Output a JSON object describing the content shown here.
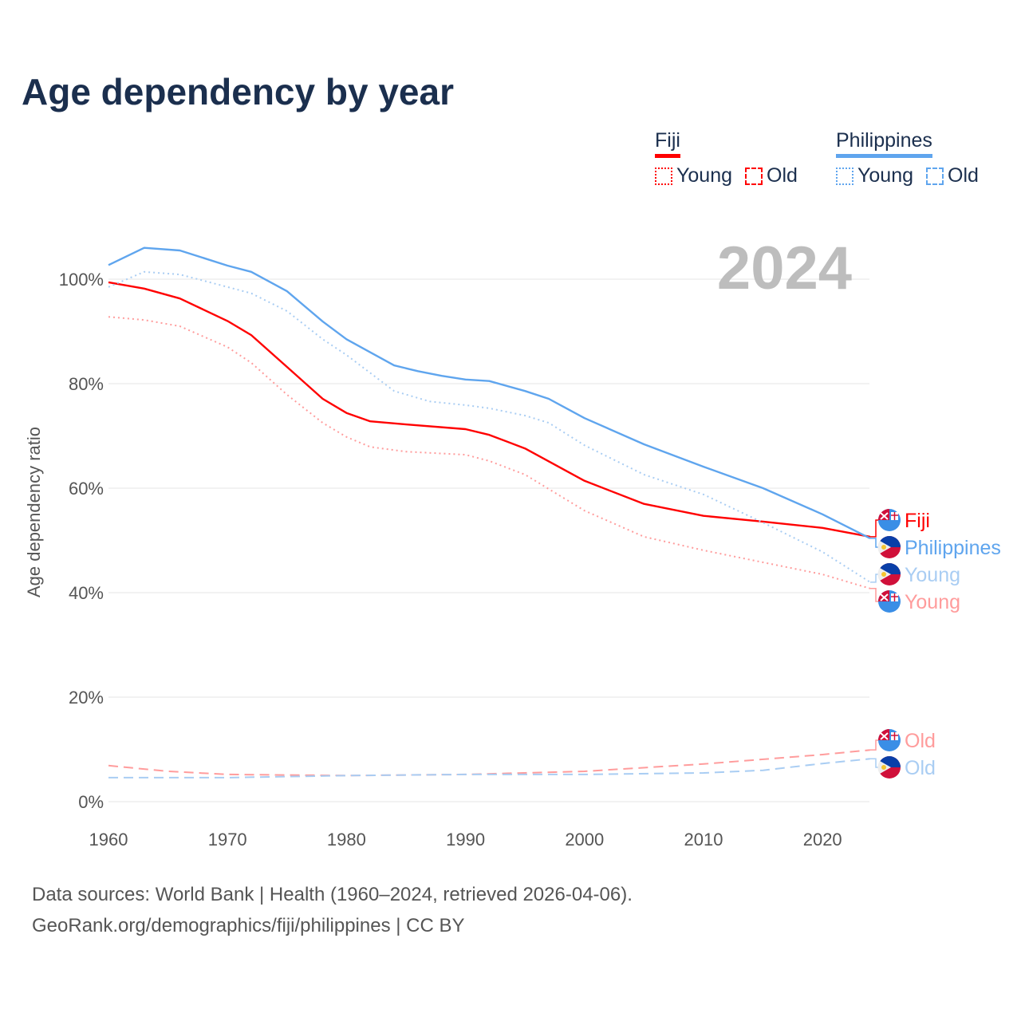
{
  "title": "Age dependency by year",
  "legend": {
    "groups": [
      {
        "name": "Fiji",
        "color": "#ff0000",
        "items": [
          "Young",
          "Old"
        ]
      },
      {
        "name": "Philippines",
        "color": "#5fa5ee",
        "items": [
          "Young",
          "Old"
        ]
      }
    ]
  },
  "year_badge": "2024",
  "source_line1": "Data sources: World Bank | Health (1960–2024, retrieved 2026-04-06).",
  "source_line2": "GeoRank.org/demographics/fiji/philippines | CC BY",
  "chart_data": {
    "type": "line",
    "title": "Age dependency by year",
    "xlabel": "",
    "ylabel": "Age dependency ratio",
    "xlim": [
      1960,
      2024
    ],
    "ylim": [
      0,
      110
    ],
    "x_ticks": [
      "1960",
      "1970",
      "1980",
      "1990",
      "2000",
      "2010",
      "2020"
    ],
    "y_ticks": [
      "0%",
      "20%",
      "40%",
      "60%",
      "80%",
      "100%"
    ],
    "grid": true,
    "series": [
      {
        "name": "Fiji",
        "label": "Fiji",
        "country": "fiji",
        "style": "solid",
        "color": "#ff0000",
        "x": [
          1960,
          1963,
          1966,
          1970,
          1972,
          1975,
          1978,
          1980,
          1982,
          1985,
          1990,
          1992,
          1995,
          2000,
          2005,
          2010,
          2015,
          2020,
          2024
        ],
        "values": [
          99.4,
          98.2,
          96.3,
          92,
          89.3,
          83.2,
          77.1,
          74.4,
          72.8,
          72.2,
          71.3,
          70.2,
          67.6,
          61.4,
          57,
          54.7,
          53.6,
          52.4,
          50.7
        ]
      },
      {
        "name": "Philippines",
        "label": "Philippines",
        "country": "philippines",
        "style": "solid",
        "color": "#5fa5ee",
        "x": [
          1960,
          1963,
          1966,
          1970,
          1972,
          1975,
          1978,
          1980,
          1982,
          1984,
          1986,
          1988,
          1990,
          1992,
          1995,
          1997,
          2000,
          2005,
          2010,
          2015,
          2020,
          2024
        ],
        "values": [
          102.7,
          106,
          105.5,
          102.6,
          101.4,
          97.7,
          91.9,
          88.5,
          86,
          83.5,
          82.4,
          81.5,
          80.8,
          80.5,
          78.6,
          77.1,
          73.4,
          68.4,
          64.1,
          60,
          55,
          50.4
        ]
      },
      {
        "name": "Philippines Young",
        "label": "Young",
        "country": "philippines",
        "style": "dotted",
        "color": "#a9cdf3",
        "x": [
          1960,
          1963,
          1966,
          1970,
          1972,
          1975,
          1978,
          1980,
          1984,
          1987,
          1990,
          1992,
          1995,
          1997,
          2000,
          2005,
          2010,
          2015,
          2020,
          2024
        ],
        "values": [
          98.5,
          101.4,
          100.9,
          98.5,
          97.3,
          93.9,
          88.5,
          85.5,
          78.6,
          76.6,
          75.9,
          75.3,
          73.9,
          72.5,
          68.2,
          62.6,
          58.8,
          53.4,
          47.8,
          42
        ]
      },
      {
        "name": "Fiji Young",
        "label": "Young",
        "country": "fiji",
        "style": "dotted",
        "color": "#ff9c9c",
        "x": [
          1960,
          1963,
          1966,
          1970,
          1972,
          1975,
          1978,
          1980,
          1982,
          1985,
          1990,
          1992,
          1995,
          2000,
          2005,
          2010,
          2015,
          2020,
          2024
        ],
        "values": [
          92.8,
          92.2,
          91,
          87,
          84,
          77.9,
          72.5,
          69.8,
          67.9,
          67,
          66.4,
          65.2,
          62.6,
          55.7,
          50.7,
          48.1,
          45.8,
          43.5,
          40.8
        ]
      },
      {
        "name": "Fiji Old",
        "label": "Old",
        "country": "fiji",
        "style": "dashed",
        "color": "#ff9c9c",
        "x": [
          1960,
          1965,
          1970,
          1980,
          1990,
          2000,
          2010,
          2020,
          2024
        ],
        "values": [
          6.9,
          5.8,
          5.2,
          5.0,
          5.2,
          5.8,
          7.2,
          9.0,
          9.9
        ]
      },
      {
        "name": "Philippines Old",
        "label": "Old",
        "country": "philippines",
        "style": "dashed",
        "color": "#a9cdf3",
        "x": [
          1960,
          1970,
          1980,
          1990,
          2000,
          2010,
          2015,
          2020,
          2024
        ],
        "values": [
          4.6,
          4.6,
          5.0,
          5.2,
          5.2,
          5.5,
          6.0,
          7.3,
          8.2
        ]
      }
    ]
  }
}
